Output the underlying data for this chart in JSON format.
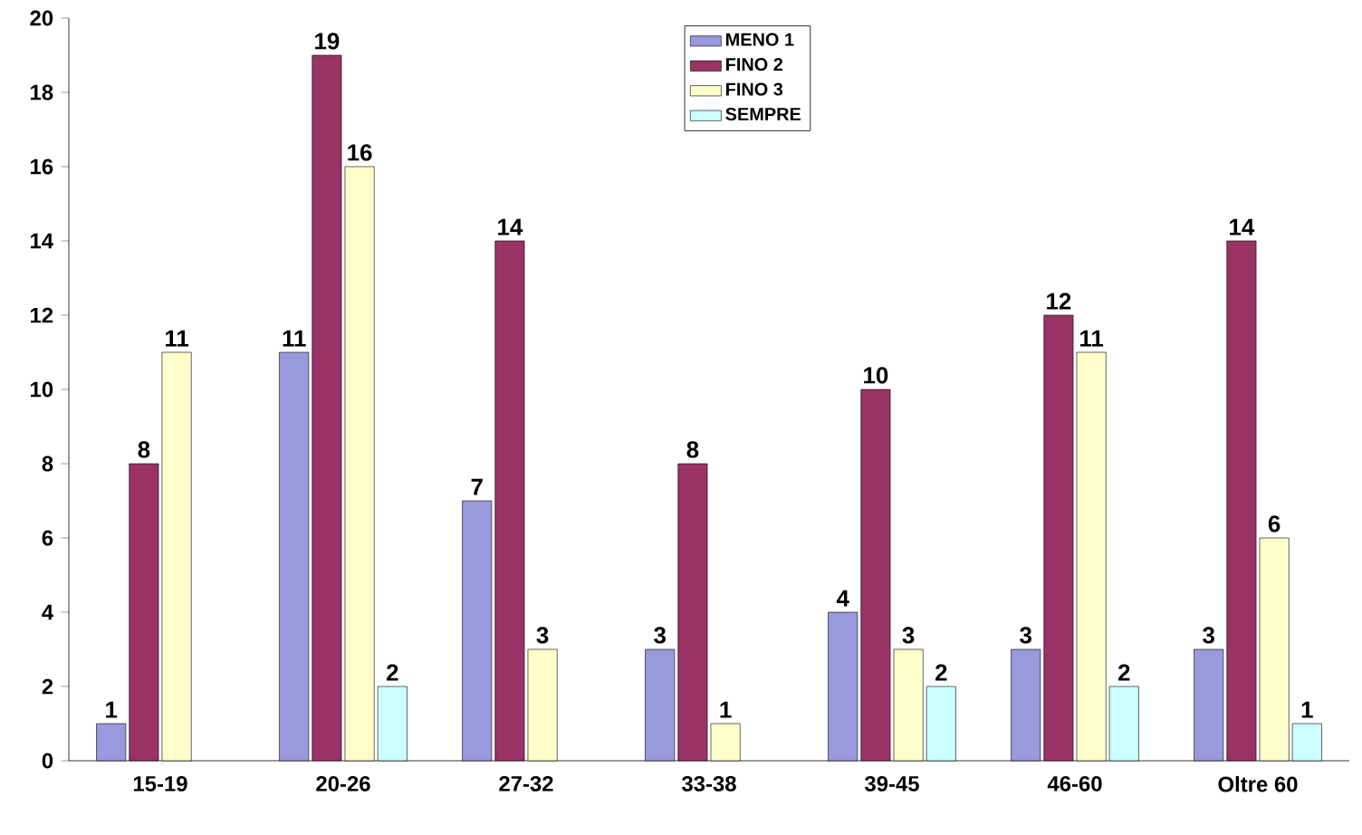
{
  "chart_data": {
    "type": "bar",
    "categories": [
      "15-19",
      "20-26",
      "27-32",
      "33-38",
      "39-45",
      "46-60",
      "Oltre 60"
    ],
    "series": [
      {
        "name": "MENO 1",
        "color": "#9999dd",
        "values": [
          1,
          11,
          7,
          3,
          4,
          3,
          3
        ]
      },
      {
        "name": "FINO 2",
        "color": "#993366",
        "values": [
          8,
          19,
          14,
          8,
          10,
          12,
          14
        ]
      },
      {
        "name": "FINO 3",
        "color": "#ffffcc",
        "values": [
          11,
          16,
          3,
          1,
          3,
          11,
          6
        ]
      },
      {
        "name": "SEMPRE",
        "color": "#ccffff",
        "values": [
          null,
          2,
          null,
          null,
          2,
          2,
          1
        ]
      }
    ],
    "ylim": [
      0,
      20
    ],
    "yticks": [
      0,
      2,
      4,
      6,
      8,
      10,
      12,
      14,
      16,
      18,
      20
    ],
    "data_labels": true,
    "legend": "top",
    "grid": false
  }
}
